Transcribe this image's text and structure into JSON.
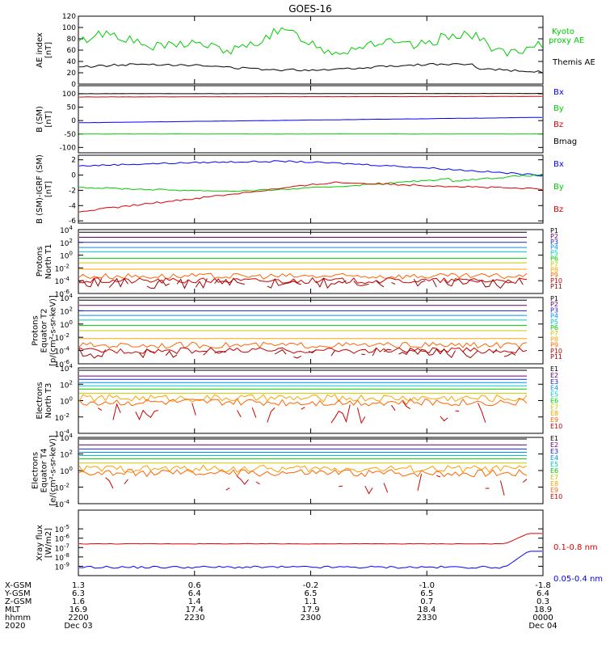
{
  "title": "GOES-16",
  "colors": {
    "black": "#000000",
    "blue": "#0000ff",
    "green": "#00cc00",
    "red": "#dd0000",
    "p": [
      "#000000",
      "#66006e",
      "#2020cc",
      "#0090ff",
      "#00c8c8",
      "#00c800",
      "#c8c800",
      "#ffa000",
      "#ff6400",
      "#c80000",
      "#a00000"
    ],
    "e": [
      "#000000",
      "#66006e",
      "#2020cc",
      "#0090ff",
      "#00c8c8",
      "#00c800",
      "#c8c800",
      "#ffa000",
      "#ff6400",
      "#c80000"
    ]
  },
  "chart_data": [
    {
      "id": "ae",
      "type": "line",
      "ylabel": "AE index\n[nT]",
      "ylim": [
        0,
        120
      ],
      "yticks": [
        "0",
        "20",
        "40",
        "60",
        "80",
        "100",
        "120"
      ],
      "series": [
        {
          "name": "Kyoto\nproxy AE",
          "color": "green",
          "kind": "ae"
        },
        {
          "name": "Themis AE",
          "color": "black",
          "kind": "themis"
        }
      ]
    },
    {
      "id": "bsm",
      "type": "line",
      "ylabel": "B (SM)\n[nT]",
      "ylim": [
        -120,
        130
      ],
      "yticks": [
        "-100",
        "-50",
        "0",
        "50",
        "100"
      ],
      "ytick_vals": [
        -100,
        -50,
        0,
        50,
        100
      ],
      "series": [
        {
          "name": "Bx",
          "color": "blue",
          "from": -8,
          "to": 12
        },
        {
          "name": "By",
          "color": "green",
          "from": -50,
          "to": -50
        },
        {
          "name": "Bz",
          "color": "red",
          "from": 88,
          "to": 90
        },
        {
          "name": "Bmag",
          "color": "black",
          "from": 100,
          "to": 101
        }
      ]
    },
    {
      "id": "bigrf",
      "type": "line",
      "ylabel": "B (SM)-IGRF (SM)\n[nT]",
      "ylim": [
        -6.3,
        2.6
      ],
      "yticks": [
        "-6",
        "-4",
        "-2",
        "0",
        "2"
      ],
      "ytick_vals": [
        -6,
        -4,
        -2,
        0,
        2
      ],
      "series": [
        {
          "name": "Bx",
          "color": "blue",
          "kind": "bx"
        },
        {
          "name": "By",
          "color": "green",
          "kind": "by"
        },
        {
          "name": "Bz",
          "color": "red",
          "kind": "bz"
        }
      ]
    },
    {
      "id": "pn",
      "type": "line",
      "ylabel": "Protons\nNorth T1",
      "ylim_log": [
        -6,
        4
      ],
      "yticks": [
        "10-6",
        "10-4",
        "10-2",
        "100",
        "102",
        "104"
      ],
      "series_names": [
        "P1",
        "P2",
        "P3",
        "P4",
        "P5",
        "P6",
        "P7",
        "P8",
        "P9",
        "P10",
        "P11"
      ],
      "levels": [
        3.6,
        2.8,
        2.0,
        1.2,
        0.5,
        -0.5,
        -1.2,
        -2.2,
        -3.3,
        -4.0,
        -4.4
      ]
    },
    {
      "id": "pe",
      "type": "line",
      "ylabel": "Protons\nEquator T2\n[p/(cm²-s-sr-keV)]",
      "ylim_log": [
        -6,
        4
      ],
      "yticks": [
        "10-6",
        "10-4",
        "10-2",
        "100",
        "102",
        "104"
      ],
      "series_names": [
        "P1",
        "P2",
        "P3",
        "P4",
        "P5",
        "P6",
        "P7",
        "P8",
        "P9",
        "P10",
        "P11"
      ],
      "levels": [
        3.6,
        2.8,
        2.0,
        1.3,
        0.6,
        -0.2,
        -1.0,
        -2.2,
        -3.2,
        -4.0,
        -4.4
      ]
    },
    {
      "id": "en",
      "type": "line",
      "ylabel": "Electrons\nNorth T3",
      "ylim_log": [
        -4,
        4
      ],
      "yticks": [
        "10-4",
        "10-2",
        "100",
        "102",
        "104"
      ],
      "series_names": [
        "E1",
        "E2",
        "E3",
        "E4",
        "E5",
        "E6",
        "E7",
        "E8",
        "E9",
        "E10"
      ],
      "levels": [
        3.7,
        3.0,
        2.6,
        2.2,
        1.8,
        1.4,
        0.9,
        0.3,
        -0.2,
        -1.5
      ]
    },
    {
      "id": "ee",
      "type": "line",
      "ylabel": "Electrons\nEquator T4\n[e/(cm²-s-sr-keV)]",
      "ylim_log": [
        -4,
        4
      ],
      "yticks": [
        "10-4",
        "10-2",
        "100",
        "102",
        "104"
      ],
      "series_names": [
        "E1",
        "E2",
        "E3",
        "E4",
        "E5",
        "E6",
        "E7",
        "E8",
        "E9",
        "E10"
      ],
      "levels": [
        3.8,
        3.1,
        2.6,
        2.2,
        1.8,
        1.4,
        0.9,
        0.2,
        -0.3,
        -1.8
      ]
    },
    {
      "id": "xray",
      "type": "line",
      "ylabel": "Xray flux\n[W/m2]",
      "ylim_log": [
        -10,
        -3
      ],
      "yticks": [
        "10-9",
        "10-8",
        "10-7",
        "10-6",
        "10-5"
      ],
      "ytick_vals": [
        -9,
        -8,
        -7,
        -6,
        -5
      ],
      "series": [
        {
          "name": "0.1-0.8 nm",
          "color": "red",
          "base": -6.6,
          "end": -5.5
        },
        {
          "name": "0.05-0.4 nm",
          "color": "blue",
          "base": -9.1,
          "end": -7.4
        }
      ]
    }
  ],
  "xaxis": {
    "labels": [
      "X-GSM",
      "Y-GSM",
      "Z-GSM",
      "MLT",
      "hhmm",
      "2020"
    ],
    "columns": [
      [
        "1.3",
        "6.3",
        "1.6",
        "16.9",
        "2200",
        "Dec 03"
      ],
      [
        "0.6",
        "6.4",
        "1.4",
        "17.4",
        "2230",
        ""
      ],
      [
        "-0.2",
        "6.5",
        "1.1",
        "17.9",
        "2300",
        ""
      ],
      [
        "-1.0",
        "6.5",
        "0.7",
        "18.4",
        "2330",
        ""
      ],
      [
        "-1.8",
        "6.4",
        "0.3",
        "18.9",
        "0000",
        "Dec 04"
      ]
    ]
  }
}
